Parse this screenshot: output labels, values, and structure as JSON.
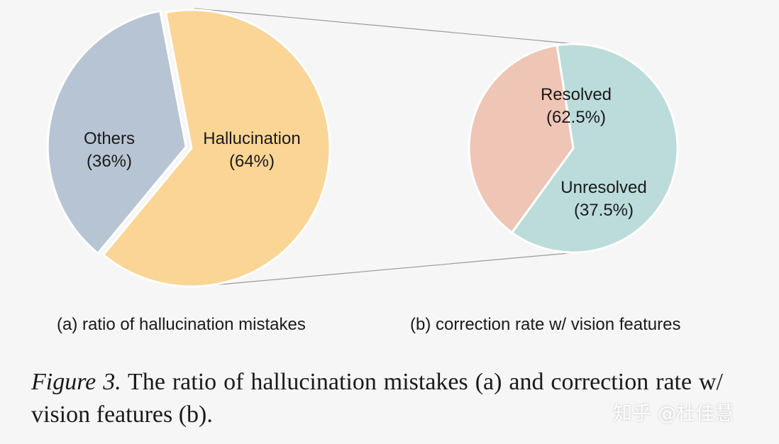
{
  "chart_data": [
    {
      "type": "pie",
      "caption": "(a) ratio of hallucination mistakes",
      "slices": [
        {
          "label": "Hallucination",
          "value": 64,
          "value_label": "(64%)",
          "color": "#fad595"
        },
        {
          "label": "Others",
          "value": 36,
          "value_label": "(36%)",
          "color": "#b7c4d3"
        }
      ],
      "exploded": "Hallucination"
    },
    {
      "type": "pie",
      "caption": "(b) correction rate w/ vision features",
      "slices": [
        {
          "label": "Resolved",
          "value": 62.5,
          "value_label": "(62.5%)",
          "color": "#bbdcda"
        },
        {
          "label": "Unresolved",
          "value": 37.5,
          "value_label": "(37.5%)",
          "color": "#efc5b6"
        }
      ],
      "expands": "Hallucination"
    }
  ],
  "caption": {
    "figure_number": "Figure 3.",
    "text": "The ratio of hallucination mistakes (a) and correction rate w/ vision features (b)."
  },
  "watermark": "知乎 @杜佳慧",
  "colors": {
    "background": "#f6f6f6",
    "connector": "#9a9a9a",
    "slice_border": "#ffffff"
  }
}
